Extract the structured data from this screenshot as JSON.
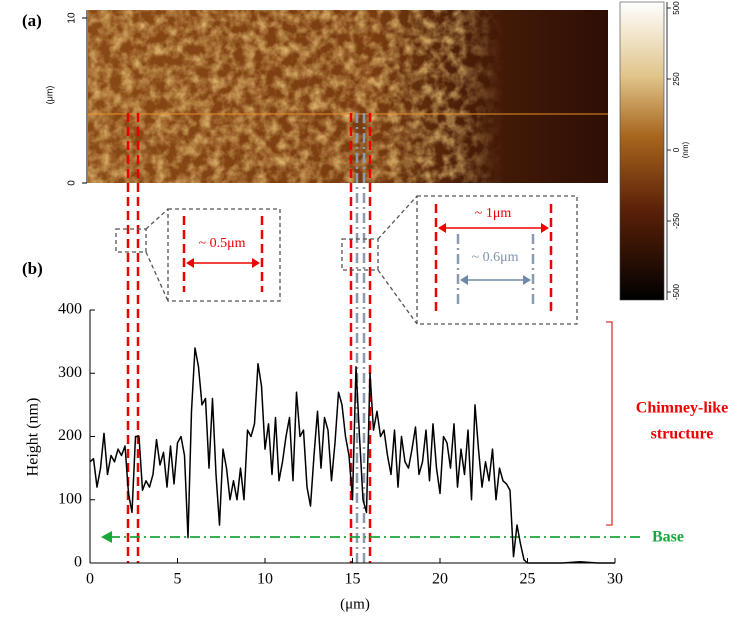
{
  "panel_a": {
    "label": "(a)",
    "ylim": [
      0,
      10
    ],
    "yticks": [
      0,
      10
    ],
    "ylabel": "(μm)",
    "colorbar": {
      "lim": [
        -500,
        500
      ],
      "ticks": [
        500,
        250,
        0,
        -250,
        -500
      ],
      "label": "(nm)"
    }
  },
  "annotations": {
    "small_gap": "~ 0.5μm",
    "big_gap": "~ 1μm",
    "inner_gap": "~ 0.6μm",
    "chimney": [
      "Chimney-like",
      "structure"
    ],
    "base": "Base"
  },
  "chart_data": {
    "type": "line",
    "panel_label": "(b)",
    "xlabel": "(μm)",
    "ylabel": "Height (nm)",
    "color": "#000000",
    "xlim": [
      0,
      30
    ],
    "ylim": [
      0,
      400
    ],
    "xticks": [
      0,
      5,
      10,
      15,
      20,
      25,
      30
    ],
    "yticks": [
      0,
      100,
      200,
      300,
      400
    ],
    "x": [
      0,
      0.2,
      0.4,
      0.6,
      0.8,
      1.0,
      1.2,
      1.4,
      1.6,
      1.8,
      2.0,
      2.2,
      2.4,
      2.6,
      2.8,
      3.0,
      3.2,
      3.4,
      3.6,
      3.8,
      4.0,
      4.2,
      4.4,
      4.6,
      4.8,
      5.0,
      5.2,
      5.4,
      5.6,
      5.8,
      6.0,
      6.2,
      6.4,
      6.6,
      6.8,
      7.0,
      7.2,
      7.4,
      7.6,
      7.8,
      8.0,
      8.2,
      8.4,
      8.6,
      8.8,
      9.0,
      9.2,
      9.4,
      9.6,
      9.8,
      10.0,
      10.2,
      10.4,
      10.6,
      10.8,
      11.0,
      11.2,
      11.4,
      11.6,
      11.8,
      12.0,
      12.2,
      12.4,
      12.6,
      12.8,
      13.0,
      13.2,
      13.4,
      13.6,
      13.8,
      14.0,
      14.2,
      14.4,
      14.6,
      14.8,
      15.0,
      15.2,
      15.4,
      15.6,
      15.8,
      16.0,
      16.2,
      16.4,
      16.6,
      16.8,
      17.0,
      17.2,
      17.4,
      17.6,
      17.8,
      18.0,
      18.2,
      18.4,
      18.6,
      18.8,
      19.0,
      19.2,
      19.4,
      19.6,
      19.8,
      20.0,
      20.2,
      20.4,
      20.6,
      20.8,
      21.0,
      21.2,
      21.4,
      21.6,
      21.8,
      22.0,
      22.2,
      22.4,
      22.6,
      22.8,
      23.0,
      23.2,
      23.4,
      23.6,
      23.8,
      24.0,
      24.2,
      24.4,
      24.6,
      24.8,
      25.0,
      26,
      27,
      28,
      29,
      30
    ],
    "values": [
      160,
      165,
      120,
      150,
      205,
      140,
      170,
      160,
      180,
      170,
      185,
      110,
      80,
      200,
      200,
      115,
      130,
      120,
      140,
      195,
      155,
      175,
      120,
      185,
      125,
      190,
      200,
      170,
      40,
      240,
      340,
      310,
      250,
      260,
      150,
      260,
      140,
      60,
      180,
      150,
      100,
      130,
      100,
      150,
      100,
      210,
      200,
      220,
      315,
      280,
      180,
      220,
      140,
      230,
      130,
      160,
      200,
      230,
      130,
      270,
      200,
      210,
      120,
      90,
      170,
      240,
      150,
      230,
      210,
      130,
      190,
      270,
      250,
      200,
      170,
      100,
      310,
      200,
      100,
      80,
      300,
      210,
      240,
      200,
      210,
      170,
      140,
      210,
      120,
      200,
      160,
      150,
      180,
      215,
      140,
      160,
      210,
      130,
      220,
      150,
      110,
      200,
      190,
      150,
      220,
      120,
      180,
      140,
      210,
      100,
      250,
      180,
      120,
      160,
      130,
      180,
      100,
      150,
      130,
      125,
      115,
      10,
      60,
      30,
      5,
      0,
      0,
      0,
      2,
      0,
      0
    ]
  }
}
